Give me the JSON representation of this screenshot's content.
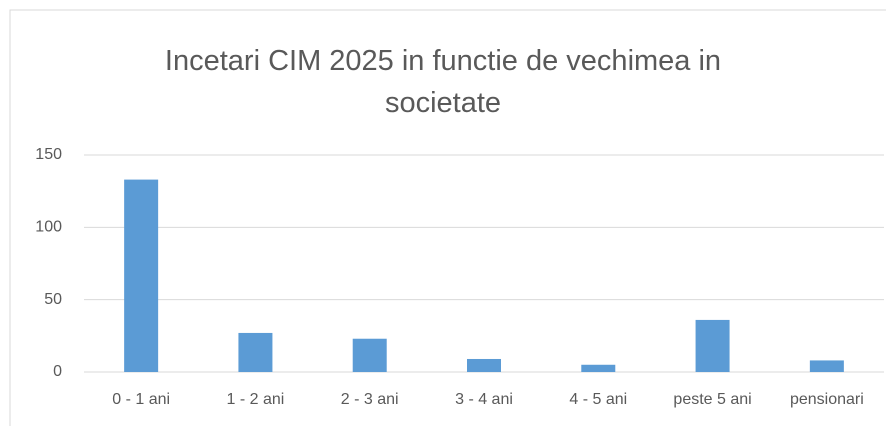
{
  "chart_data": {
    "type": "bar",
    "title": "Incetari CIM 2025 in functie de vechimea in societate",
    "categories": [
      "0 - 1 ani",
      "1 - 2 ani",
      "2 - 3 ani",
      "3 - 4 ani",
      "4 - 5 ani",
      "peste 5 ani",
      "pensionari"
    ],
    "values": [
      133,
      27,
      23,
      9,
      5,
      36,
      8
    ],
    "color": "#5b9bd5",
    "ylim": [
      0,
      150
    ],
    "yticks": [
      0,
      50,
      100,
      150
    ],
    "grid": true
  }
}
